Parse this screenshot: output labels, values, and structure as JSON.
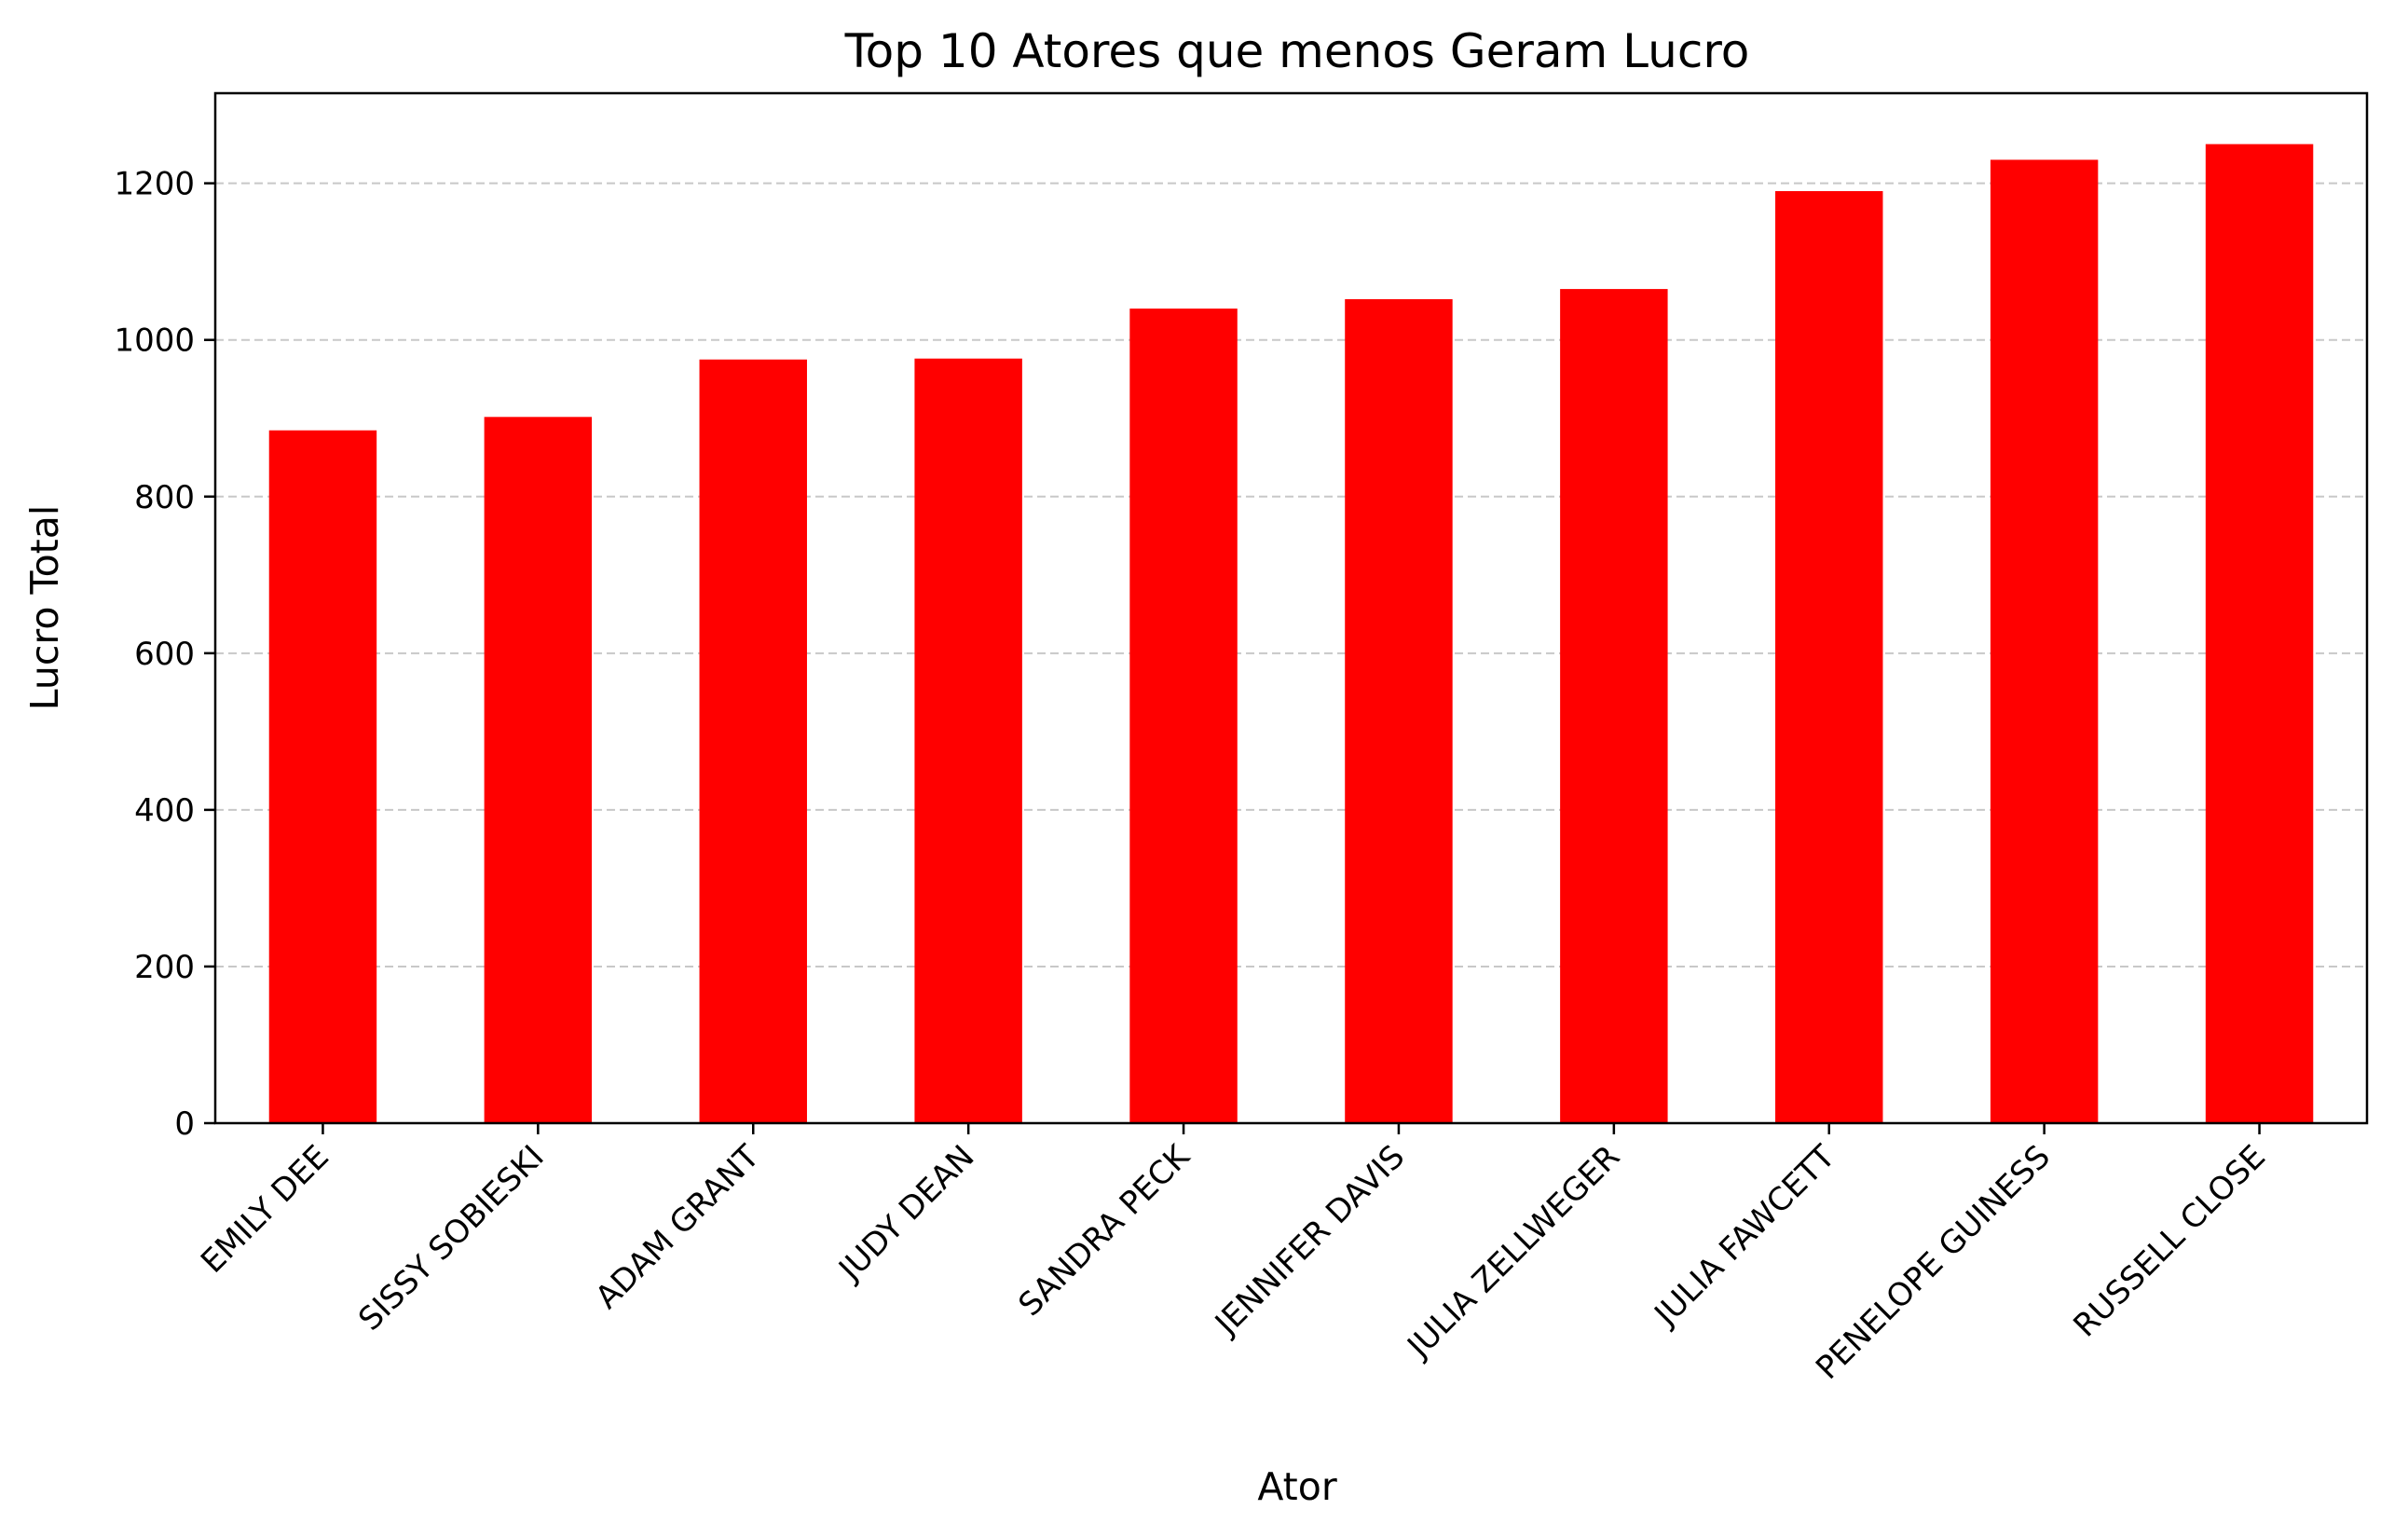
{
  "chart_data": {
    "type": "bar",
    "title": "Top 10 Atores que menos Geram Lucro",
    "xlabel": "Ator",
    "ylabel": "Lucro Total",
    "categories": [
      "EMILY DEE",
      "SISSY SOBIESKI",
      "ADAM GRANT",
      "JUDY DEAN",
      "SANDRA PECK",
      "JENNIFER DAVIS",
      "JULIA ZELLWEGER",
      "JULIA FAWCETT",
      "PENELOPE GUINESS",
      "RUSSELL CLOSE"
    ],
    "values": [
      884.55,
      901.67,
      975.0,
      976.2,
      1040.0,
      1052.0,
      1065.0,
      1190.0,
      1230.0,
      1250.0
    ],
    "ylim": [
      0,
      1315
    ],
    "yticks": [
      0,
      200,
      400,
      600,
      800,
      1000,
      1200
    ],
    "grid": "y-dashed",
    "bar_color": "#ff0000",
    "grid_color": "#c8c8c8"
  }
}
